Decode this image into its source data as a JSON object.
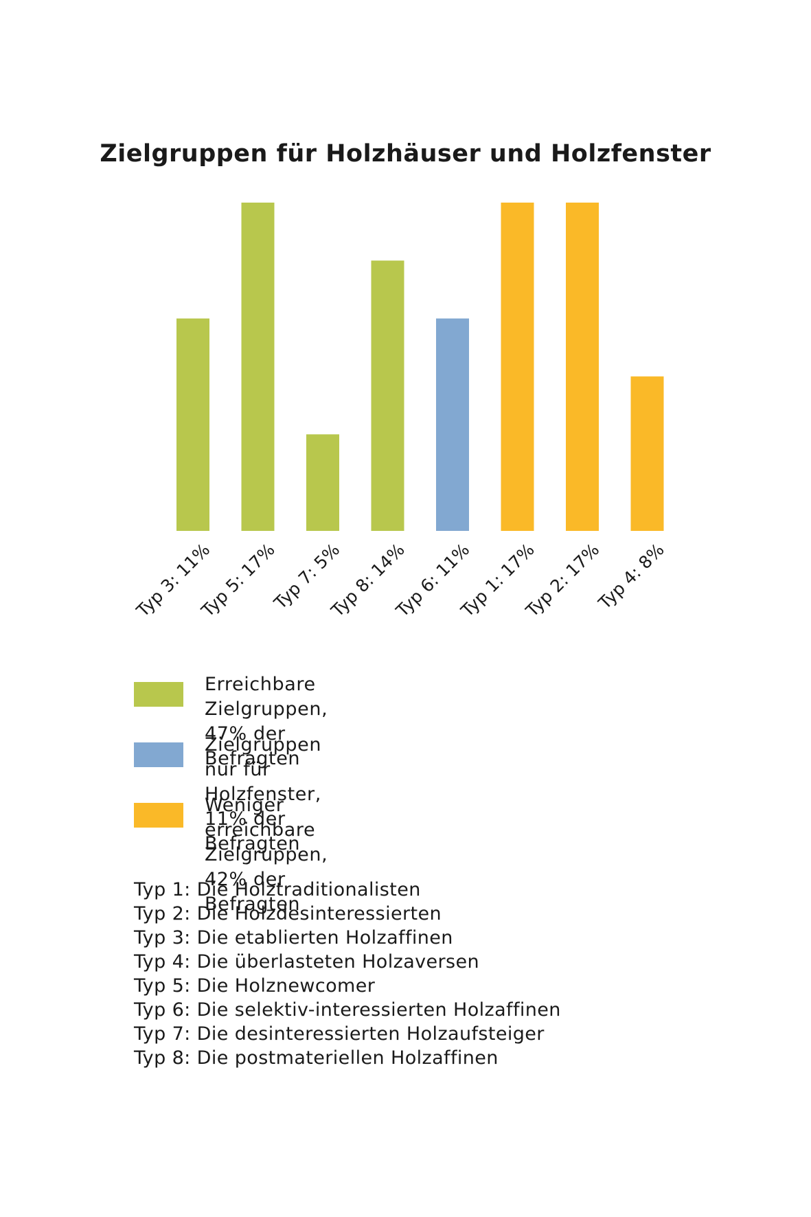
{
  "title": "Zielgruppen für Holzhäuser und Holzfenster",
  "chart_data": {
    "type": "bar",
    "title": "Zielgruppen für Holzhäuser und Holzfenster",
    "categories": [
      "Typ 3: 11%",
      "Typ 5: 17%",
      "Typ 7: 5%",
      "Typ 8: 14%",
      "Typ 6: 11%",
      "Typ 1: 17%",
      "Typ 2: 17%",
      "Typ 4: 8%"
    ],
    "values": [
      11,
      17,
      5,
      14,
      11,
      17,
      17,
      8
    ],
    "groups": [
      "green",
      "green",
      "green",
      "green",
      "blue",
      "orange",
      "orange",
      "orange"
    ],
    "colors": {
      "green": "#b8c74d",
      "blue": "#82a8d1",
      "orange": "#fab928"
    },
    "ylim": [
      0,
      17
    ],
    "xlabel": "",
    "ylabel": "",
    "grid": false,
    "legend_placement": "below"
  },
  "legend": [
    {
      "group": "green",
      "line1": "Erreichbare Zielgruppen,",
      "line2": "47% der Befragten"
    },
    {
      "group": "blue",
      "line1": "Zielgruppen nur für Holzfenster,",
      "line2": "11% der Befragten"
    },
    {
      "group": "orange",
      "line1": "Weniger erreichbare Zielgruppen,",
      "line2": "42% der Befragten"
    }
  ],
  "types": [
    "Typ 1: Die Holztraditionalisten",
    "Typ 2: Die Holzdesinteressierten",
    "Typ 3: Die etablierten Holzaffinen",
    "Typ 4: Die überlasteten Holzaversen",
    "Typ 5: Die Holznewcomer",
    "Typ 6: Die selektiv-interessierten Holzaffinen",
    "Typ 7: Die desinteressierten Holzaufsteiger",
    "Typ 8: Die postmateriellen Holzaffinen"
  ]
}
